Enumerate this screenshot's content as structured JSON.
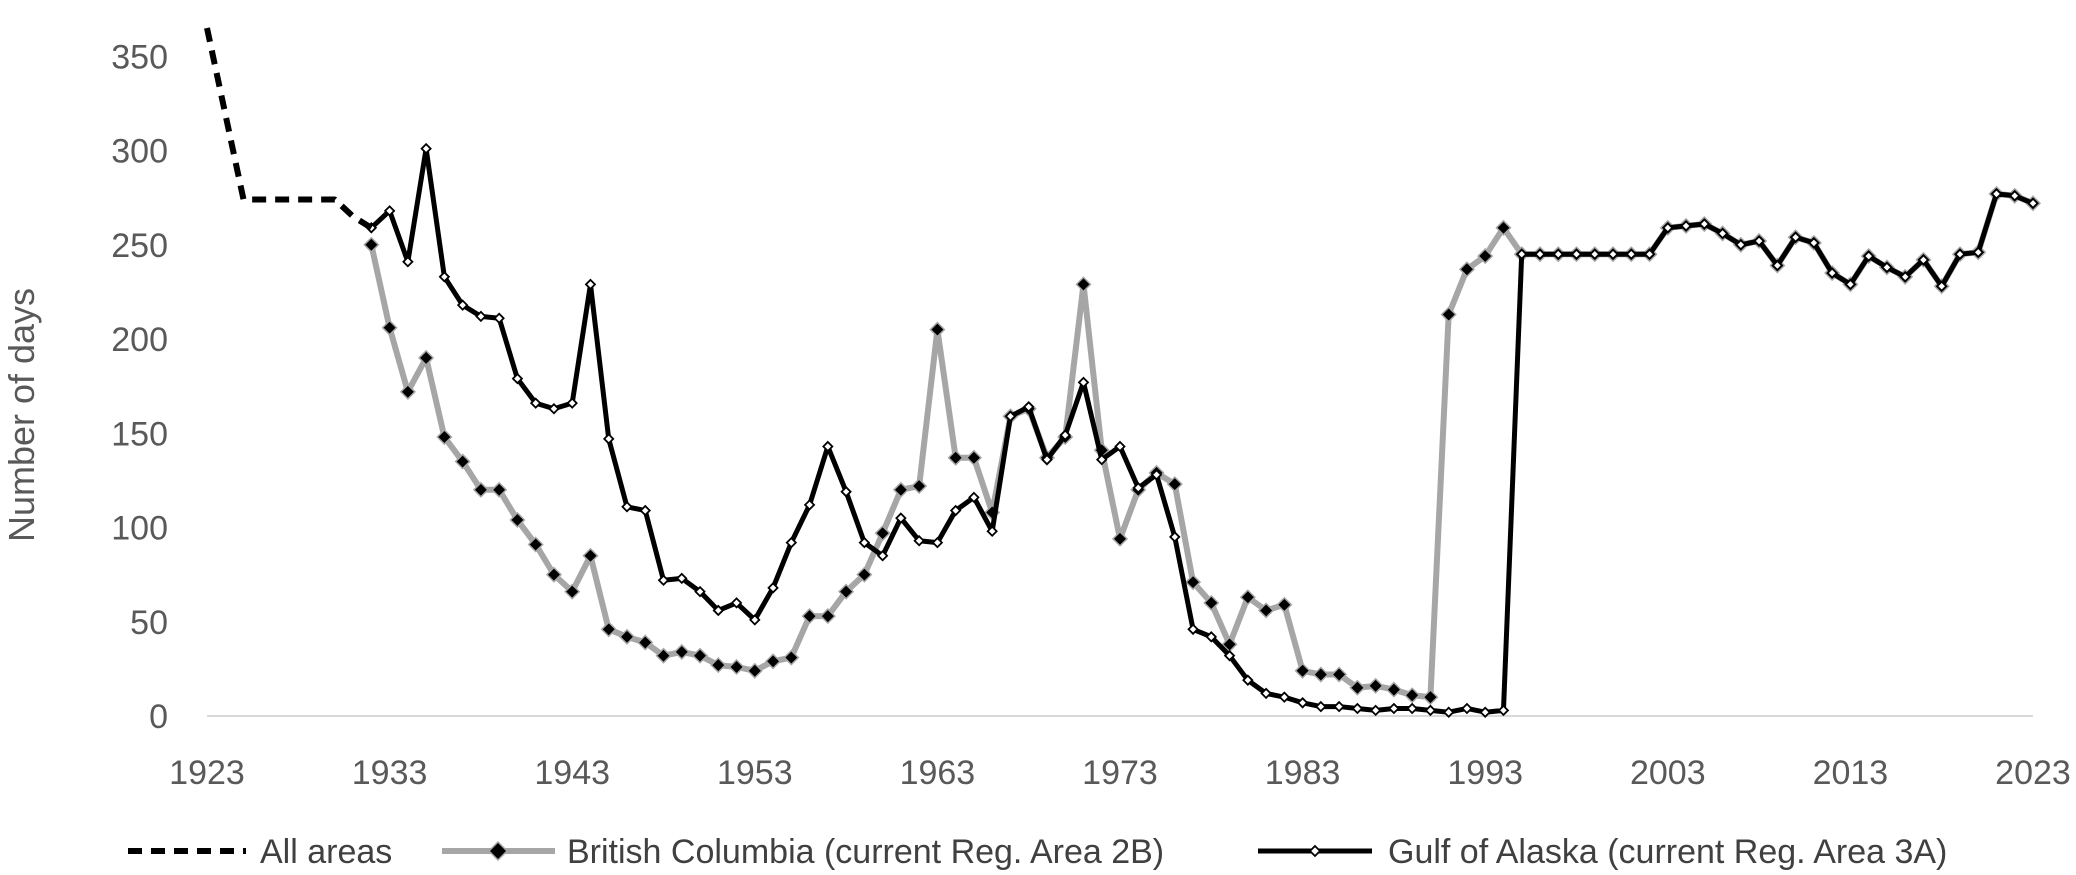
{
  "chart_data": {
    "type": "line",
    "title": "",
    "xlabel": "",
    "ylabel": "Number of days",
    "xlim": [
      1923,
      2023
    ],
    "ylim": [
      0,
      365
    ],
    "x_ticks": [
      1923,
      1933,
      1943,
      1953,
      1963,
      1973,
      1983,
      1993,
      2003,
      2013,
      2023
    ],
    "y_ticks": [
      0,
      50,
      100,
      150,
      200,
      250,
      300,
      350
    ],
    "grid": false,
    "legend_position": "bottom",
    "colors": {
      "all_areas": "#000000",
      "british_columbia": "#a6a6a6",
      "gulf_of_alaska": "#000000",
      "marker": "#000000",
      "axis": "#595959"
    },
    "series": [
      {
        "name": "All areas",
        "style": "dashed",
        "points": [
          [
            1923,
            365
          ],
          [
            1925,
            274
          ],
          [
            1930,
            274
          ],
          [
            1931,
            265
          ],
          [
            1932,
            259
          ]
        ]
      },
      {
        "name": "British Columbia (current Reg. Area 2B)",
        "style": "solid-gray-diamond",
        "points": [
          [
            1932,
            250
          ],
          [
            1933,
            206
          ],
          [
            1934,
            172
          ],
          [
            1935,
            190
          ],
          [
            1936,
            148
          ],
          [
            1937,
            135
          ],
          [
            1938,
            120
          ],
          [
            1939,
            120
          ],
          [
            1940,
            104
          ],
          [
            1941,
            91
          ],
          [
            1942,
            75
          ],
          [
            1943,
            66
          ],
          [
            1944,
            85
          ],
          [
            1945,
            46
          ],
          [
            1946,
            42
          ],
          [
            1947,
            39
          ],
          [
            1948,
            32
          ],
          [
            1949,
            34
          ],
          [
            1950,
            32
          ],
          [
            1951,
            27
          ],
          [
            1952,
            26
          ],
          [
            1953,
            24
          ],
          [
            1954,
            29
          ],
          [
            1955,
            31
          ],
          [
            1956,
            53
          ],
          [
            1957,
            53
          ],
          [
            1958,
            66
          ],
          [
            1959,
            75
          ],
          [
            1960,
            97
          ],
          [
            1961,
            120
          ],
          [
            1962,
            122
          ],
          [
            1963,
            205
          ],
          [
            1964,
            137
          ],
          [
            1965,
            137
          ],
          [
            1966,
            108
          ],
          [
            1967,
            159
          ],
          [
            1968,
            163
          ],
          [
            1969,
            137
          ],
          [
            1970,
            148
          ],
          [
            1971,
            229
          ],
          [
            1972,
            141
          ],
          [
            1973,
            94
          ],
          [
            1974,
            120
          ],
          [
            1975,
            129
          ],
          [
            1976,
            123
          ],
          [
            1977,
            71
          ],
          [
            1978,
            60
          ],
          [
            1979,
            38
          ],
          [
            1980,
            63
          ],
          [
            1981,
            56
          ],
          [
            1982,
            59
          ],
          [
            1983,
            24
          ],
          [
            1984,
            22
          ],
          [
            1985,
            22
          ],
          [
            1986,
            15
          ],
          [
            1987,
            16
          ],
          [
            1988,
            14
          ],
          [
            1989,
            11
          ],
          [
            1990,
            10
          ],
          [
            1991,
            213
          ],
          [
            1992,
            237
          ],
          [
            1993,
            244
          ],
          [
            1994,
            259
          ],
          [
            1995,
            245
          ],
          [
            1996,
            245
          ],
          [
            1997,
            245
          ],
          [
            1998,
            245
          ],
          [
            1999,
            245
          ],
          [
            2000,
            245
          ],
          [
            2001,
            245
          ],
          [
            2002,
            245
          ],
          [
            2003,
            259
          ],
          [
            2004,
            260
          ],
          [
            2005,
            261
          ],
          [
            2006,
            256
          ],
          [
            2007,
            250
          ],
          [
            2008,
            252
          ],
          [
            2009,
            239
          ],
          [
            2010,
            254
          ],
          [
            2011,
            251
          ],
          [
            2012,
            235
          ],
          [
            2013,
            229
          ],
          [
            2014,
            244
          ],
          [
            2015,
            238
          ],
          [
            2016,
            233
          ],
          [
            2017,
            242
          ],
          [
            2018,
            228
          ],
          [
            2019,
            245
          ],
          [
            2020,
            246
          ],
          [
            2021,
            277
          ],
          [
            2022,
            276
          ],
          [
            2023,
            272
          ]
        ]
      },
      {
        "name": "Gulf of Alaska (current Reg. Area 3A)",
        "style": "solid-black-diamond",
        "points": [
          [
            1932,
            259
          ],
          [
            1933,
            268
          ],
          [
            1934,
            241
          ],
          [
            1935,
            301
          ],
          [
            1936,
            233
          ],
          [
            1937,
            218
          ],
          [
            1938,
            212
          ],
          [
            1939,
            211
          ],
          [
            1940,
            179
          ],
          [
            1941,
            166
          ],
          [
            1942,
            163
          ],
          [
            1943,
            166
          ],
          [
            1944,
            229
          ],
          [
            1945,
            147
          ],
          [
            1946,
            111
          ],
          [
            1947,
            109
          ],
          [
            1948,
            72
          ],
          [
            1949,
            73
          ],
          [
            1950,
            66
          ],
          [
            1951,
            56
          ],
          [
            1952,
            60
          ],
          [
            1953,
            51
          ],
          [
            1954,
            68
          ],
          [
            1955,
            92
          ],
          [
            1956,
            112
          ],
          [
            1957,
            143
          ],
          [
            1958,
            119
          ],
          [
            1959,
            92
          ],
          [
            1960,
            85
          ],
          [
            1961,
            105
          ],
          [
            1962,
            93
          ],
          [
            1963,
            92
          ],
          [
            1964,
            109
          ],
          [
            1965,
            116
          ],
          [
            1966,
            98
          ],
          [
            1967,
            159
          ],
          [
            1968,
            164
          ],
          [
            1969,
            136
          ],
          [
            1970,
            149
          ],
          [
            1971,
            177
          ],
          [
            1972,
            136
          ],
          [
            1973,
            143
          ],
          [
            1974,
            121
          ],
          [
            1975,
            128
          ],
          [
            1976,
            95
          ],
          [
            1977,
            46
          ],
          [
            1978,
            42
          ],
          [
            1979,
            32
          ],
          [
            1980,
            19
          ],
          [
            1981,
            12
          ],
          [
            1982,
            10
          ],
          [
            1983,
            7
          ],
          [
            1984,
            5
          ],
          [
            1985,
            5
          ],
          [
            1986,
            4
          ],
          [
            1987,
            3
          ],
          [
            1988,
            4
          ],
          [
            1989,
            4
          ],
          [
            1990,
            3
          ],
          [
            1991,
            2
          ],
          [
            1992,
            4
          ],
          [
            1993,
            2
          ],
          [
            1994,
            3
          ],
          [
            1995,
            245
          ],
          [
            1996,
            245
          ],
          [
            1997,
            245
          ],
          [
            1998,
            245
          ],
          [
            1999,
            245
          ],
          [
            2000,
            245
          ],
          [
            2001,
            245
          ],
          [
            2002,
            245
          ],
          [
            2003,
            259
          ],
          [
            2004,
            260
          ],
          [
            2005,
            261
          ],
          [
            2006,
            256
          ],
          [
            2007,
            250
          ],
          [
            2008,
            252
          ],
          [
            2009,
            239
          ],
          [
            2010,
            254
          ],
          [
            2011,
            251
          ],
          [
            2012,
            235
          ],
          [
            2013,
            229
          ],
          [
            2014,
            244
          ],
          [
            2015,
            238
          ],
          [
            2016,
            233
          ],
          [
            2017,
            242
          ],
          [
            2018,
            228
          ],
          [
            2019,
            245
          ],
          [
            2020,
            246
          ],
          [
            2021,
            277
          ],
          [
            2022,
            276
          ],
          [
            2023,
            272
          ]
        ]
      }
    ]
  }
}
